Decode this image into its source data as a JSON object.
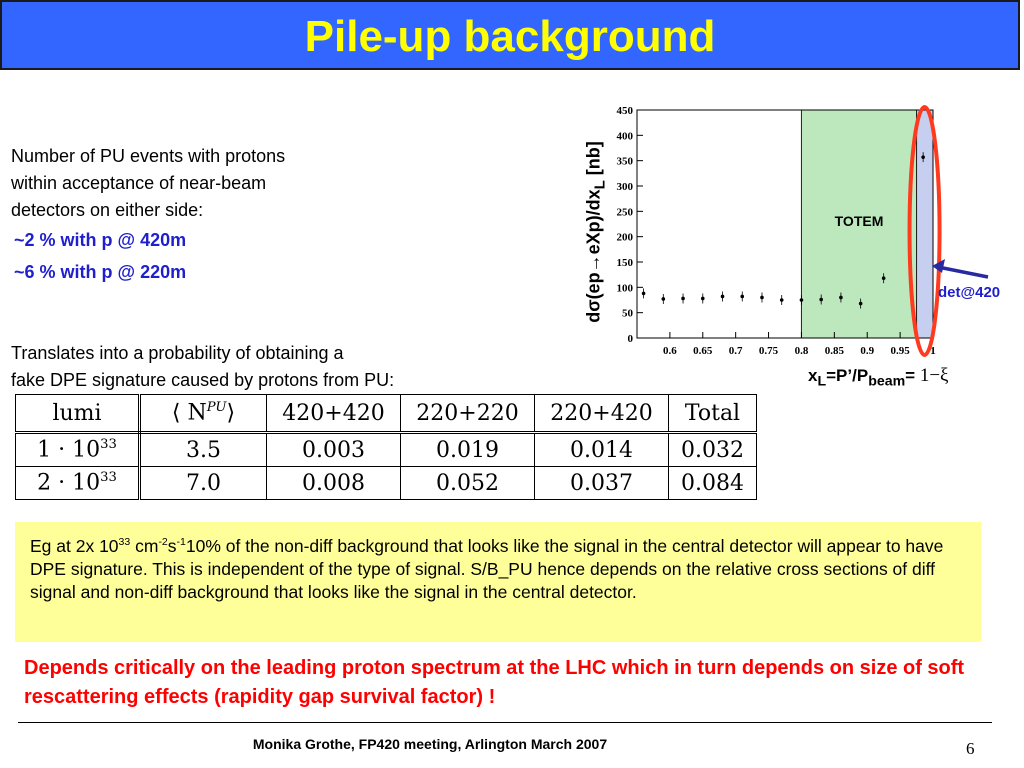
{
  "title": "Pile-up background",
  "pu_text": {
    "line1": "Number of PU events with protons",
    "line2": "within acceptance of near-beam",
    "line3": "detectors on either side:",
    "item1": "~2 % with p @ 420m",
    "item2": "~6 % with p @ 220m"
  },
  "translates": {
    "line1": "Translates into a probability of obtaining a",
    "line2": "fake DPE signature caused by protons from PU:"
  },
  "table": {
    "header": [
      "lumi",
      "⟨ N",
      "PU",
      "⟩",
      "420+420",
      "220+220",
      "220+420",
      "Total"
    ],
    "rows": [
      {
        "lumi_base": "1 · 10",
        "lumi_exp": "33",
        "npu": "3.5",
        "v420": "0.003",
        "v220": "0.019",
        "vmix": "0.014",
        "total": "0.032"
      },
      {
        "lumi_base": "2 · 10",
        "lumi_exp": "33",
        "npu": "7.0",
        "v420": "0.008",
        "v220": "0.052",
        "vmix": "0.037",
        "total": "0.084"
      }
    ]
  },
  "note": {
    "a": "Eg at 2x 10",
    "a_sup": "33",
    "b": " cm",
    "b_sup": "-2",
    "c": "s",
    "c_sup": "-1",
    "d": "10% of the non-diff background that looks like the signal in the central detector will appear to have DPE signature. This is independent of the type of signal. S/B_PU hence depends on the relative cross sections of diff signal and non-diff background that looks like the signal in the central detector."
  },
  "warning": "Depends critically on the leading proton spectrum at the LHC which in turn depends on size of soft rescattering effects (rapidity gap survival factor) !",
  "footer": "Monika Grothe, FP420 meeting, Arlington March 2007",
  "page_number": "6",
  "colors": {
    "title_bg": "#3366ff",
    "title_text": "#ffff00",
    "accent_blue": "#1f1fcc",
    "warning": "#ff0000",
    "note_bg": "#ffff99",
    "totem_fill": "#bde8bd",
    "det_band": "#c7cff0",
    "ellipse": "#ff3b1f"
  },
  "plot": {
    "ylabel_a": "dσ(ep→eXp)/dx",
    "ylabel_sub": "L",
    "ylabel_b": " [nb]",
    "xlabel_a": "x",
    "xlabel_sub": "L",
    "xlabel_b": "=P’/P",
    "xlabel_sub2": "beam",
    "xlabel_c": "= ",
    "xlabel_xi": "1−ξ",
    "totem_label": "TOTEM",
    "det_label": "det@420"
  },
  "chart_data": {
    "type": "scatter",
    "xlabel": "xL=P’/Pbeam= 1−ξ",
    "ylabel": "dσ(ep→eXp)/dxL [nb]",
    "xlim": [
      0.55,
      1.0
    ],
    "ylim": [
      0,
      450
    ],
    "x_ticks": [
      "0.6",
      "0.65",
      "0.7",
      "0.75",
      "0.8",
      "0.85",
      "0.9",
      "0.95",
      "1"
    ],
    "y_ticks": [
      "0",
      "50",
      "100",
      "150",
      "200",
      "250",
      "300",
      "350",
      "400",
      "450"
    ],
    "points": [
      {
        "x": 0.56,
        "y": 88
      },
      {
        "x": 0.59,
        "y": 77
      },
      {
        "x": 0.62,
        "y": 78
      },
      {
        "x": 0.65,
        "y": 78
      },
      {
        "x": 0.68,
        "y": 82
      },
      {
        "x": 0.71,
        "y": 82
      },
      {
        "x": 0.74,
        "y": 80
      },
      {
        "x": 0.77,
        "y": 75
      },
      {
        "x": 0.8,
        "y": 75
      },
      {
        "x": 0.83,
        "y": 76
      },
      {
        "x": 0.86,
        "y": 80
      },
      {
        "x": 0.89,
        "y": 68
      },
      {
        "x": 0.925,
        "y": 118
      },
      {
        "x": 0.985,
        "y": 357
      }
    ],
    "regions": [
      {
        "label": "TOTEM",
        "x_start": 0.8,
        "x_end": 0.975
      },
      {
        "label": "det@420",
        "x_start": 0.975,
        "x_end": 1.0
      }
    ]
  }
}
